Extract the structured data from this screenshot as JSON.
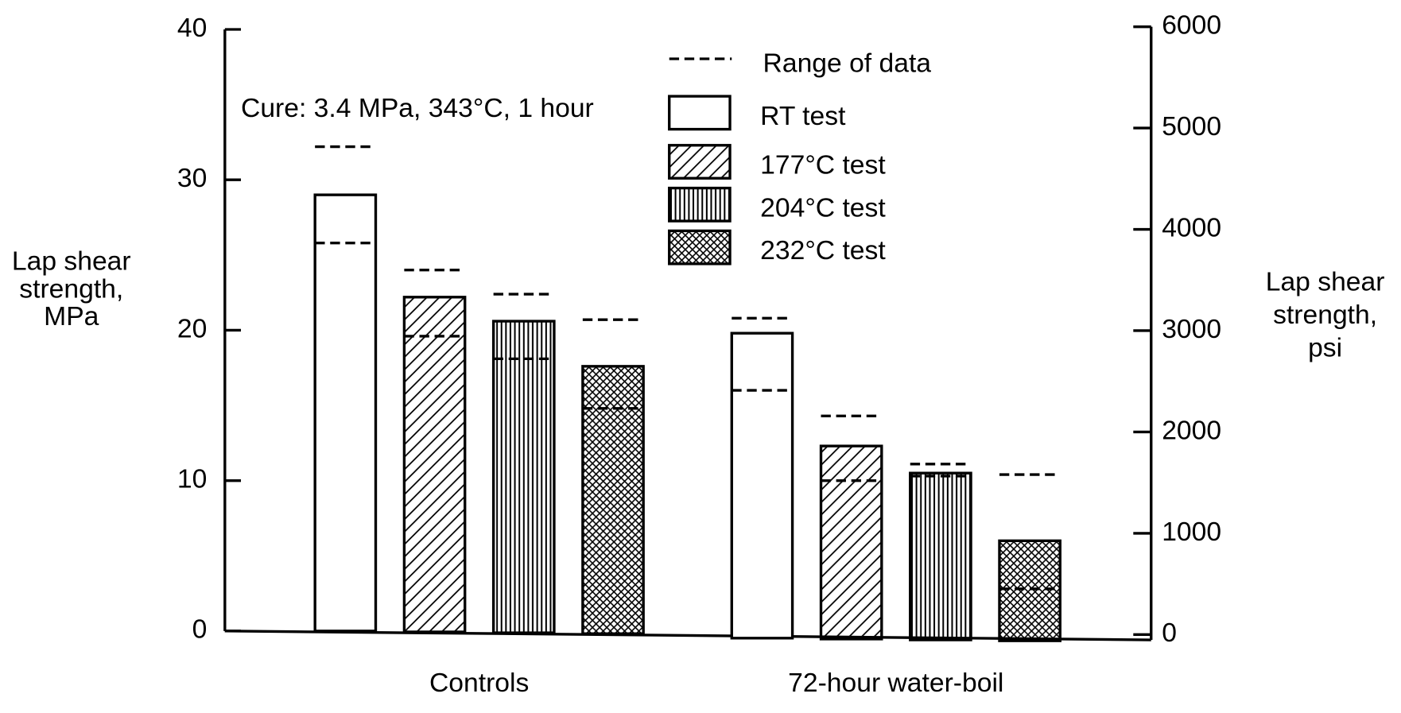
{
  "chart_data": {
    "type": "bar",
    "annotation": "Cure: 3.4 MPa, 343°C, 1 hour",
    "categories": [
      "Controls",
      "72-hour water-boil"
    ],
    "ylabel": [
      "Lap shear",
      "strength,",
      "MPa"
    ],
    "y2label": [
      "Lap shear",
      "strength,",
      "psi"
    ],
    "ylim": [
      0,
      40
    ],
    "yticks": [
      0,
      10,
      20,
      30,
      40
    ],
    "y2lim": [
      0,
      6000
    ],
    "y2ticks": [
      0,
      1000,
      2000,
      3000,
      4000,
      5000,
      6000
    ],
    "range_name": "Range of data",
    "series": [
      {
        "name": "RT test",
        "pattern": "none",
        "values": [
          29,
          19.8
        ],
        "low": [
          25.8,
          16
        ],
        "high": [
          32.2,
          20.8
        ]
      },
      {
        "name": "177°C test",
        "pattern": "diagonal",
        "values": [
          22.2,
          12.3
        ],
        "low": [
          19.6,
          10
        ],
        "high": [
          24,
          14.3
        ]
      },
      {
        "name": "204°C test",
        "pattern": "vertical",
        "values": [
          20.6,
          10.5
        ],
        "low": [
          18.1,
          10.3
        ],
        "high": [
          22.4,
          11.1
        ]
      },
      {
        "name": "232°C test",
        "pattern": "crosshatch",
        "values": [
          17.6,
          6
        ],
        "low": [
          14.8,
          2.8
        ],
        "high": [
          20.7,
          10.4
        ]
      }
    ]
  }
}
